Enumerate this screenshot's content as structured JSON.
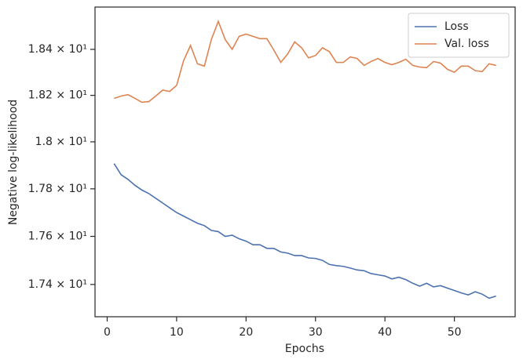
{
  "chart_data": {
    "type": "line",
    "x_label": "Epochs",
    "y_label": "Negative log-likelihood",
    "x": [
      1,
      2,
      3,
      4,
      5,
      6,
      7,
      8,
      9,
      10,
      11,
      12,
      13,
      14,
      15,
      16,
      17,
      18,
      19,
      20,
      21,
      22,
      23,
      24,
      25,
      26,
      27,
      28,
      29,
      30,
      31,
      32,
      33,
      34,
      35,
      36,
      37,
      38,
      39,
      40,
      41,
      42,
      43,
      44,
      45,
      46,
      47,
      48,
      49,
      50,
      51,
      52,
      53,
      54,
      55,
      56
    ],
    "series": [
      {
        "name": "Loss",
        "color": "#4c72b0",
        "values": [
          17.907,
          17.86,
          17.84,
          17.815,
          17.795,
          17.78,
          17.76,
          17.74,
          17.72,
          17.7,
          17.685,
          17.67,
          17.655,
          17.645,
          17.625,
          17.62,
          17.6,
          17.605,
          17.59,
          17.58,
          17.565,
          17.565,
          17.55,
          17.55,
          17.535,
          17.53,
          17.52,
          17.52,
          17.51,
          17.508,
          17.5,
          17.483,
          17.478,
          17.475,
          17.468,
          17.46,
          17.457,
          17.445,
          17.44,
          17.435,
          17.423,
          17.43,
          17.42,
          17.405,
          17.393,
          17.405,
          17.39,
          17.395,
          17.385,
          17.375,
          17.365,
          17.357,
          17.37,
          17.36,
          17.343,
          17.352
        ]
      },
      {
        "name": "Val. loss",
        "color": "#dd8452",
        "values": [
          18.187,
          18.197,
          18.203,
          18.187,
          18.17,
          18.173,
          18.197,
          18.223,
          18.217,
          18.243,
          18.35,
          18.417,
          18.337,
          18.327,
          18.443,
          18.523,
          18.443,
          18.4,
          18.457,
          18.467,
          18.457,
          18.447,
          18.447,
          18.397,
          18.343,
          18.38,
          18.433,
          18.407,
          18.363,
          18.373,
          18.407,
          18.39,
          18.343,
          18.343,
          18.367,
          18.36,
          18.33,
          18.347,
          18.36,
          18.343,
          18.333,
          18.343,
          18.357,
          18.33,
          18.323,
          18.32,
          18.347,
          18.34,
          18.313,
          18.3,
          18.327,
          18.327,
          18.307,
          18.303,
          18.337,
          18.33
        ]
      }
    ],
    "xlim": [
      -1.75,
      58.75
    ],
    "xticks": [
      0,
      10,
      20,
      30,
      40,
      50
    ],
    "ylim": [
      17.267,
      18.586
    ],
    "yscale": "log",
    "yticks": [
      {
        "value": 17.4,
        "label": "1.74 × 10¹"
      },
      {
        "value": 17.6,
        "label": "1.76 × 10¹"
      },
      {
        "value": 17.8,
        "label": "1.78 × 10¹"
      },
      {
        "value": 18.0,
        "label": "1.8 × 10¹"
      },
      {
        "value": 18.2,
        "label": "1.82 × 10¹"
      },
      {
        "value": 18.4,
        "label": "1.84 × 10¹"
      }
    ],
    "grid": false,
    "legend": "upper right"
  }
}
